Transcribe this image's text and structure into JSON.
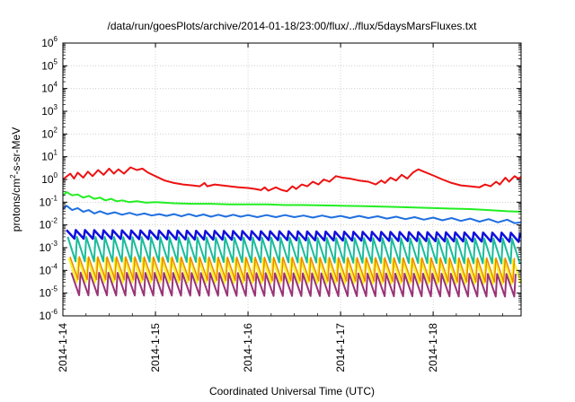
{
  "chart_data": {
    "type": "line",
    "title": "/data/run/goesPlots/archive/2014-01-18/23:00/flux/../flux/5daysMarsFluxes.txt",
    "xlabel": "Coordinated Universal Time (UTC)",
    "ylabel": {
      "base": "protons/cm",
      "sup": "2",
      "rest": "-s-sr-MeV"
    },
    "y_scale": "log",
    "ylim_exponents": [
      -6,
      6
    ],
    "yticks": [
      {
        "base": "10",
        "exp": "-6"
      },
      {
        "base": "10",
        "exp": "-5"
      },
      {
        "base": "10",
        "exp": "-4"
      },
      {
        "base": "10",
        "exp": "-3"
      },
      {
        "base": "10",
        "exp": "-2"
      },
      {
        "base": "10",
        "exp": "-1"
      },
      {
        "base": "10",
        "exp": "0"
      },
      {
        "base": "10",
        "exp": "1"
      },
      {
        "base": "10",
        "exp": "2"
      },
      {
        "base": "10",
        "exp": "3"
      },
      {
        "base": "10",
        "exp": "4"
      },
      {
        "base": "10",
        "exp": "5"
      },
      {
        "base": "10",
        "exp": "6"
      }
    ],
    "xlim_days": [
      0,
      4.95
    ],
    "xticks": [
      {
        "day": 0,
        "label": "2014-1-14"
      },
      {
        "day": 1,
        "label": "2014-1-15"
      },
      {
        "day": 2,
        "label": "2014-1-16"
      },
      {
        "day": 3,
        "label": "2014-1-17"
      },
      {
        "day": 4,
        "label": "2014-1-18"
      }
    ],
    "grid": true,
    "legend": "none",
    "series": [
      {
        "color": "#ee1111",
        "width": 2,
        "points": [
          [
            0.0,
            1.0
          ],
          [
            0.08,
            1.8
          ],
          [
            0.12,
            1.1
          ],
          [
            0.16,
            2.0
          ],
          [
            0.22,
            1.2
          ],
          [
            0.27,
            2.2
          ],
          [
            0.32,
            1.4
          ],
          [
            0.38,
            2.6
          ],
          [
            0.44,
            1.6
          ],
          [
            0.5,
            3.0
          ],
          [
            0.55,
            1.8
          ],
          [
            0.6,
            2.8
          ],
          [
            0.66,
            1.8
          ],
          [
            0.73,
            3.4
          ],
          [
            0.8,
            2.6
          ],
          [
            0.86,
            3.0
          ],
          [
            0.92,
            2.0
          ],
          [
            1.0,
            1.4
          ],
          [
            1.1,
            0.9
          ],
          [
            1.2,
            0.7
          ],
          [
            1.3,
            0.6
          ],
          [
            1.4,
            0.55
          ],
          [
            1.48,
            0.5
          ],
          [
            1.53,
            0.7
          ],
          [
            1.56,
            0.5
          ],
          [
            1.64,
            0.6
          ],
          [
            1.72,
            0.55
          ],
          [
            1.8,
            0.5
          ],
          [
            1.9,
            0.45
          ],
          [
            2.0,
            0.42
          ],
          [
            2.08,
            0.38
          ],
          [
            2.14,
            0.34
          ],
          [
            2.18,
            0.45
          ],
          [
            2.22,
            0.32
          ],
          [
            2.3,
            0.45
          ],
          [
            2.36,
            0.35
          ],
          [
            2.42,
            0.3
          ],
          [
            2.48,
            0.5
          ],
          [
            2.52,
            0.38
          ],
          [
            2.58,
            0.6
          ],
          [
            2.64,
            0.5
          ],
          [
            2.7,
            0.8
          ],
          [
            2.76,
            0.6
          ],
          [
            2.82,
            1.0
          ],
          [
            2.88,
            0.8
          ],
          [
            2.95,
            1.4
          ],
          [
            3.02,
            1.2
          ],
          [
            3.1,
            1.1
          ],
          [
            3.2,
            0.9
          ],
          [
            3.3,
            0.8
          ],
          [
            3.38,
            0.6
          ],
          [
            3.44,
            0.9
          ],
          [
            3.48,
            0.7
          ],
          [
            3.54,
            1.2
          ],
          [
            3.6,
            0.9
          ],
          [
            3.66,
            1.6
          ],
          [
            3.72,
            1.1
          ],
          [
            3.78,
            2.0
          ],
          [
            3.84,
            2.8
          ],
          [
            3.9,
            2.2
          ],
          [
            4.0,
            1.5
          ],
          [
            4.1,
            1.0
          ],
          [
            4.2,
            0.7
          ],
          [
            4.3,
            0.55
          ],
          [
            4.4,
            0.5
          ],
          [
            4.5,
            0.45
          ],
          [
            4.56,
            0.6
          ],
          [
            4.62,
            0.5
          ],
          [
            4.68,
            0.8
          ],
          [
            4.72,
            0.6
          ],
          [
            4.78,
            1.2
          ],
          [
            4.82,
            0.8
          ],
          [
            4.88,
            1.4
          ],
          [
            4.92,
            1.1
          ],
          [
            4.95,
            1.3
          ]
        ]
      },
      {
        "color": "#22ee22",
        "width": 2,
        "points": [
          [
            0.0,
            0.2
          ],
          [
            0.04,
            0.28
          ],
          [
            0.1,
            0.2
          ],
          [
            0.16,
            0.22
          ],
          [
            0.22,
            0.16
          ],
          [
            0.28,
            0.19
          ],
          [
            0.34,
            0.14
          ],
          [
            0.4,
            0.16
          ],
          [
            0.46,
            0.12
          ],
          [
            0.52,
            0.14
          ],
          [
            0.58,
            0.11
          ],
          [
            0.64,
            0.12
          ],
          [
            0.72,
            0.1
          ],
          [
            0.8,
            0.11
          ],
          [
            0.9,
            0.095
          ],
          [
            1.0,
            0.1
          ],
          [
            1.2,
            0.09
          ],
          [
            1.4,
            0.085
          ],
          [
            1.6,
            0.085
          ],
          [
            1.8,
            0.08
          ],
          [
            2.0,
            0.08
          ],
          [
            2.2,
            0.08
          ],
          [
            2.4,
            0.075
          ],
          [
            2.6,
            0.075
          ],
          [
            2.8,
            0.072
          ],
          [
            3.0,
            0.07
          ],
          [
            3.2,
            0.068
          ],
          [
            3.4,
            0.065
          ],
          [
            3.6,
            0.062
          ],
          [
            3.8,
            0.058
          ],
          [
            4.0,
            0.055
          ],
          [
            4.2,
            0.052
          ],
          [
            4.4,
            0.05
          ],
          [
            4.6,
            0.045
          ],
          [
            4.8,
            0.04
          ],
          [
            4.95,
            0.038
          ]
        ]
      },
      {
        "color": "#1e6fe0",
        "width": 2,
        "points": [
          [
            0.0,
            0.05
          ],
          [
            0.04,
            0.07
          ],
          [
            0.1,
            0.045
          ],
          [
            0.16,
            0.055
          ],
          [
            0.22,
            0.038
          ],
          [
            0.28,
            0.045
          ],
          [
            0.34,
            0.032
          ],
          [
            0.4,
            0.04
          ],
          [
            0.48,
            0.03
          ],
          [
            0.56,
            0.036
          ],
          [
            0.64,
            0.028
          ],
          [
            0.72,
            0.034
          ],
          [
            0.8,
            0.027
          ],
          [
            0.88,
            0.032
          ],
          [
            0.96,
            0.026
          ],
          [
            1.04,
            0.03
          ],
          [
            1.12,
            0.025
          ],
          [
            1.2,
            0.03
          ],
          [
            1.28,
            0.024
          ],
          [
            1.36,
            0.03
          ],
          [
            1.44,
            0.024
          ],
          [
            1.52,
            0.029
          ],
          [
            1.6,
            0.023
          ],
          [
            1.68,
            0.028
          ],
          [
            1.76,
            0.023
          ],
          [
            1.84,
            0.028
          ],
          [
            1.92,
            0.023
          ],
          [
            2.0,
            0.027
          ],
          [
            2.1,
            0.022
          ],
          [
            2.2,
            0.027
          ],
          [
            2.3,
            0.022
          ],
          [
            2.4,
            0.027
          ],
          [
            2.5,
            0.022
          ],
          [
            2.6,
            0.026
          ],
          [
            2.7,
            0.021
          ],
          [
            2.8,
            0.026
          ],
          [
            2.9,
            0.021
          ],
          [
            3.0,
            0.025
          ],
          [
            3.1,
            0.02
          ],
          [
            3.2,
            0.025
          ],
          [
            3.3,
            0.02
          ],
          [
            3.4,
            0.024
          ],
          [
            3.5,
            0.019
          ],
          [
            3.6,
            0.023
          ],
          [
            3.7,
            0.018
          ],
          [
            3.8,
            0.022
          ],
          [
            3.9,
            0.017
          ],
          [
            4.0,
            0.021
          ],
          [
            4.1,
            0.016
          ],
          [
            4.2,
            0.02
          ],
          [
            4.3,
            0.015
          ],
          [
            4.4,
            0.019
          ],
          [
            4.5,
            0.014
          ],
          [
            4.6,
            0.018
          ],
          [
            4.7,
            0.013
          ],
          [
            4.8,
            0.017
          ],
          [
            4.88,
            0.012
          ],
          [
            4.95,
            0.013
          ]
        ]
      },
      {
        "color": "#1010dd",
        "width": 2.5,
        "sawtooth": {
          "period": 0.1,
          "hi": 0.006,
          "lo": 0.0025,
          "hiEnd": 0.0045,
          "loEnd": 0.0018
        }
      },
      {
        "color": "#1abc9c",
        "width": 2,
        "sawtooth": {
          "period": 0.1,
          "hi": 0.003,
          "lo": 0.00025,
          "hiEnd": 0.0025,
          "loEnd": 0.0002
        }
      },
      {
        "color": "#f5f520",
        "width": 2,
        "sawtooth": {
          "period": 0.1,
          "hi": 0.00035,
          "lo": 3e-05,
          "hiEnd": 0.0003,
          "loEnd": 2.5e-05
        }
      },
      {
        "color": "#ee8800",
        "width": 1.5,
        "sawtooth": {
          "period": 0.1,
          "hi": 0.0004,
          "lo": 4e-05,
          "hiEnd": 0.00035,
          "loEnd": 3e-05
        }
      },
      {
        "color": "#993377",
        "width": 2,
        "sawtooth": {
          "period": 0.1,
          "hi": 8e-05,
          "lo": 8e-06,
          "hiEnd": 7e-05,
          "loEnd": 7e-06
        }
      }
    ]
  }
}
